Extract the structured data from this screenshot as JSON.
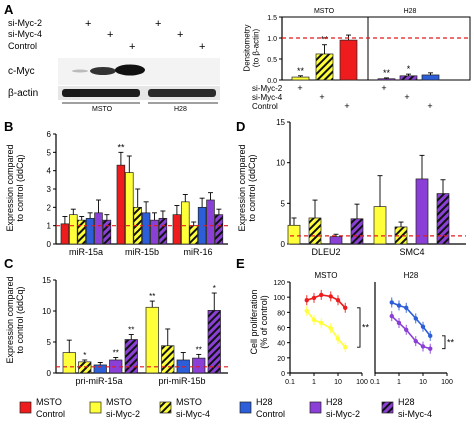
{
  "colors": {
    "msto_control": "#ee1c1c",
    "msto_sirna": "#ffff3a",
    "h28_control": "#2b5ed8",
    "h28_sirna": "#8a3fd6",
    "ref_line": "#e21b1b",
    "blot_bg": "#f2f2f2",
    "blot_band": "#1a1a1a"
  },
  "panels": {
    "a": {
      "letter": "A",
      "treatments": [
        "si-Myc-2",
        "si-Myc-4",
        "Control"
      ],
      "markers": [
        "+",
        "+",
        "+",
        "+",
        "+",
        "+"
      ],
      "proteins": [
        "c-Myc",
        "β-actin"
      ],
      "lanes": [
        "MSTO",
        "H28"
      ],
      "densitometry": {
        "ylabel": "Densitometry\n(to β-actin)",
        "ylim": [
          0,
          1.5
        ],
        "ticks": [
          "0.0",
          "0.5",
          "1.0",
          "1.5"
        ],
        "groups": [
          "MSTO",
          "H28"
        ],
        "values": [
          0.07,
          0.62,
          0.95,
          0.03,
          0.1,
          0.12
        ],
        "errors": [
          0.03,
          0.22,
          0.12,
          0.02,
          0.04,
          0.05
        ],
        "stars": [
          "**",
          "**",
          "",
          "**",
          "*",
          ""
        ]
      }
    },
    "b": {
      "letter": "B",
      "ylabel": "Expression compared\nto control (ddCq)",
      "ticks": [
        "0",
        "1",
        "2",
        "3",
        "4",
        "5",
        "6"
      ],
      "ylim": [
        0,
        6
      ],
      "categories": [
        "miR-15a",
        "miR-15b",
        "miR-16"
      ],
      "values": [
        [
          1.1,
          1.6,
          1.3,
          1.4,
          1.7,
          1.3
        ],
        [
          4.3,
          3.9,
          2.0,
          1.7,
          1.3,
          1.4
        ],
        [
          1.6,
          2.3,
          1.0,
          2.0,
          2.4,
          1.6
        ]
      ],
      "errors": [
        [
          0.4,
          0.3,
          0.2,
          0.3,
          0.7,
          0.3
        ],
        [
          0.7,
          0.9,
          1.0,
          0.6,
          0.4,
          0.4
        ],
        [
          0.5,
          0.4,
          0.2,
          0.5,
          0.4,
          0.3
        ]
      ],
      "stars": [
        "",
        "**",
        ""
      ]
    },
    "c": {
      "letter": "C",
      "ylabel": "Expression compared\nto control (ddCq)",
      "ticks": [
        "0",
        "5",
        "10",
        "15"
      ],
      "ylim": [
        0,
        15
      ],
      "categories": [
        "pri-miR-15a",
        "pri-miR-15b"
      ],
      "values": [
        [
          3.3,
          1.8,
          1.3,
          2.1,
          5.4
        ],
        [
          10.6,
          4.4,
          2.1,
          2.4,
          10.1
        ]
      ],
      "errors": [
        [
          2.0,
          0.3,
          0.4,
          0.4,
          0.8
        ],
        [
          1.0,
          2.7,
          1.2,
          0.6,
          2.8
        ]
      ],
      "stars": [
        [
          "",
          "*",
          "",
          "**",
          "**"
        ],
        [
          "**",
          "",
          "",
          "**",
          "*"
        ]
      ]
    },
    "d": {
      "letter": "D",
      "ylabel": "Expression compared\nto control (ddCq)",
      "ticks": [
        "0",
        "5",
        "10",
        "15"
      ],
      "ylim": [
        0,
        15
      ],
      "categories": [
        "DLEU2",
        "SMC4"
      ],
      "values": [
        [
          2.3,
          3.2,
          0.9,
          3.1
        ],
        [
          4.6,
          2.1,
          8.0,
          6.2
        ]
      ],
      "errors": [
        [
          0.9,
          2.2,
          0.3,
          1.8
        ],
        [
          3.8,
          0.6,
          2.9,
          1.7
        ]
      ]
    },
    "e": {
      "letter": "E",
      "ylabel": "Cell proliferation\n(% of control)",
      "ticks": [
        "0",
        "20",
        "40",
        "60",
        "80",
        "100",
        "120"
      ],
      "xticks": [
        "0.1",
        "1",
        "10",
        "100"
      ],
      "titles": [
        "MSTO",
        "H28"
      ],
      "msto": {
        "x": [
          0.5,
          1,
          2,
          5,
          10,
          20
        ],
        "control": [
          96,
          99,
          103,
          101,
          96,
          86
        ],
        "sirna": [
          82,
          70,
          66,
          59,
          45,
          34
        ],
        "star": "**"
      },
      "h28": {
        "x": [
          0.5,
          1,
          2,
          5,
          10,
          20
        ],
        "control": [
          93,
          89,
          86,
          72,
          61,
          49
        ],
        "sirna": [
          75,
          66,
          57,
          42,
          35,
          32
        ],
        "star": "**"
      }
    }
  },
  "legend": {
    "items": [
      {
        "group": "MSTO",
        "label": "Control"
      },
      {
        "group": "MSTO",
        "label": "si-Myc-2"
      },
      {
        "group": "MSTO",
        "label": "si-Myc-4"
      },
      {
        "group": "H28",
        "label": "Control"
      },
      {
        "group": "H28",
        "label": "si-Myc-2"
      },
      {
        "group": "H28",
        "label": "si-Myc-4"
      }
    ]
  }
}
